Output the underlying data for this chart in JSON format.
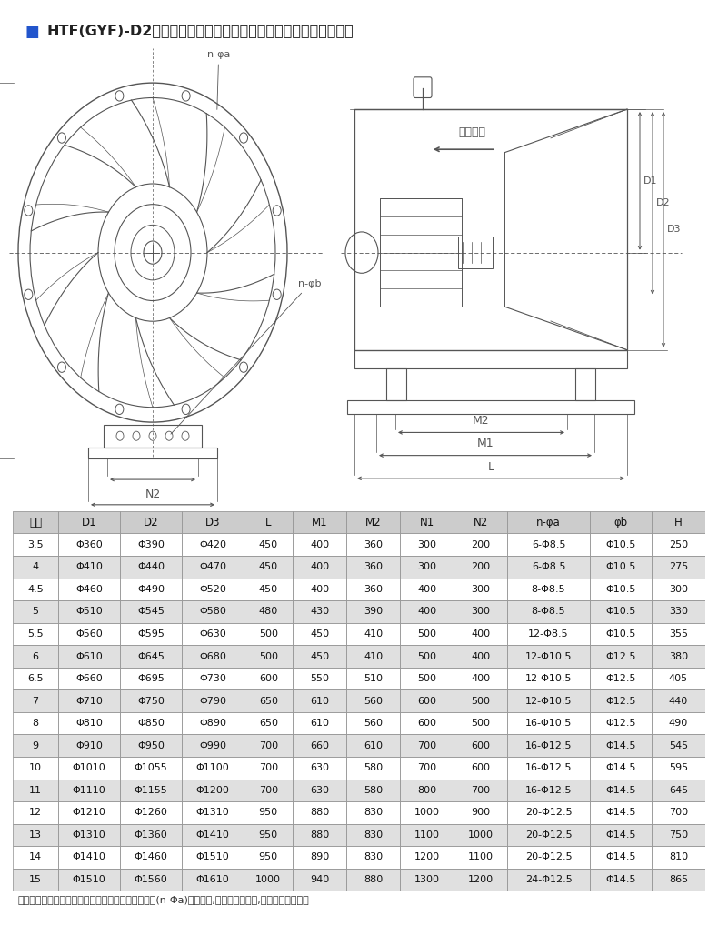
{
  "title": "■ HTF(GYF)-D2低速低压消防高温排烟混流式通风机外形及安装尺寸",
  "title_color": "#222222",
  "title_fontsize": 13,
  "bg_color": "#ffffff",
  "note": "注：为了同用户的安装尺寸保持一致，法兰打孔尺寸(n-Φa)仅供参考,若用户没有说明,本厂一般不打孔。",
  "headers": [
    "机号",
    "D1",
    "D2",
    "D3",
    "L",
    "M1",
    "M2",
    "N1",
    "N2",
    "n-φa",
    "φb",
    "H"
  ],
  "rows": [
    [
      "3.5",
      "Φ360",
      "Φ390",
      "Φ420",
      "450",
      "400",
      "360",
      "300",
      "200",
      "6-Φ8.5",
      "Φ10.5",
      "250"
    ],
    [
      "4",
      "Φ410",
      "Φ440",
      "Φ470",
      "450",
      "400",
      "360",
      "300",
      "200",
      "6-Φ8.5",
      "Φ10.5",
      "275"
    ],
    [
      "4.5",
      "Φ460",
      "Φ490",
      "Φ520",
      "450",
      "400",
      "360",
      "400",
      "300",
      "8-Φ8.5",
      "Φ10.5",
      "300"
    ],
    [
      "5",
      "Φ510",
      "Φ545",
      "Φ580",
      "480",
      "430",
      "390",
      "400",
      "300",
      "8-Φ8.5",
      "Φ10.5",
      "330"
    ],
    [
      "5.5",
      "Φ560",
      "Φ595",
      "Φ630",
      "500",
      "450",
      "410",
      "500",
      "400",
      "12-Φ8.5",
      "Φ10.5",
      "355"
    ],
    [
      "6",
      "Φ610",
      "Φ645",
      "Φ680",
      "500",
      "450",
      "410",
      "500",
      "400",
      "12-Φ10.5",
      "Φ12.5",
      "380"
    ],
    [
      "6.5",
      "Φ660",
      "Φ695",
      "Φ730",
      "600",
      "550",
      "510",
      "500",
      "400",
      "12-Φ10.5",
      "Φ12.5",
      "405"
    ],
    [
      "7",
      "Φ710",
      "Φ750",
      "Φ790",
      "650",
      "610",
      "560",
      "600",
      "500",
      "12-Φ10.5",
      "Φ12.5",
      "440"
    ],
    [
      "8",
      "Φ810",
      "Φ850",
      "Φ890",
      "650",
      "610",
      "560",
      "600",
      "500",
      "16-Φ10.5",
      "Φ12.5",
      "490"
    ],
    [
      "9",
      "Φ910",
      "Φ950",
      "Φ990",
      "700",
      "660",
      "610",
      "700",
      "600",
      "16-Φ12.5",
      "Φ14.5",
      "545"
    ],
    [
      "10",
      "Φ1010",
      "Φ1055",
      "Φ1100",
      "700",
      "630",
      "580",
      "700",
      "600",
      "16-Φ12.5",
      "Φ14.5",
      "595"
    ],
    [
      "11",
      "Φ1110",
      "Φ1155",
      "Φ1200",
      "700",
      "630",
      "580",
      "800",
      "700",
      "16-Φ12.5",
      "Φ14.5",
      "645"
    ],
    [
      "12",
      "Φ1210",
      "Φ1260",
      "Φ1310",
      "950",
      "880",
      "830",
      "1000",
      "900",
      "20-Φ12.5",
      "Φ14.5",
      "700"
    ],
    [
      "13",
      "Φ1310",
      "Φ1360",
      "Φ1410",
      "950",
      "880",
      "830",
      "1100",
      "1000",
      "20-Φ12.5",
      "Φ14.5",
      "750"
    ],
    [
      "14",
      "Φ1410",
      "Φ1460",
      "Φ1510",
      "950",
      "890",
      "830",
      "1200",
      "1100",
      "20-Φ12.5",
      "Φ14.5",
      "810"
    ],
    [
      "15",
      "Φ1510",
      "Φ1560",
      "Φ1610",
      "1000",
      "940",
      "880",
      "1300",
      "1200",
      "24-Φ12.5",
      "Φ14.5",
      "865"
    ]
  ],
  "shaded_rows": [
    1,
    3,
    5,
    7,
    9,
    11,
    13,
    15
  ],
  "shade_color": "#e0e0e0",
  "line_color": "#555555",
  "table_line_color": "#999999"
}
